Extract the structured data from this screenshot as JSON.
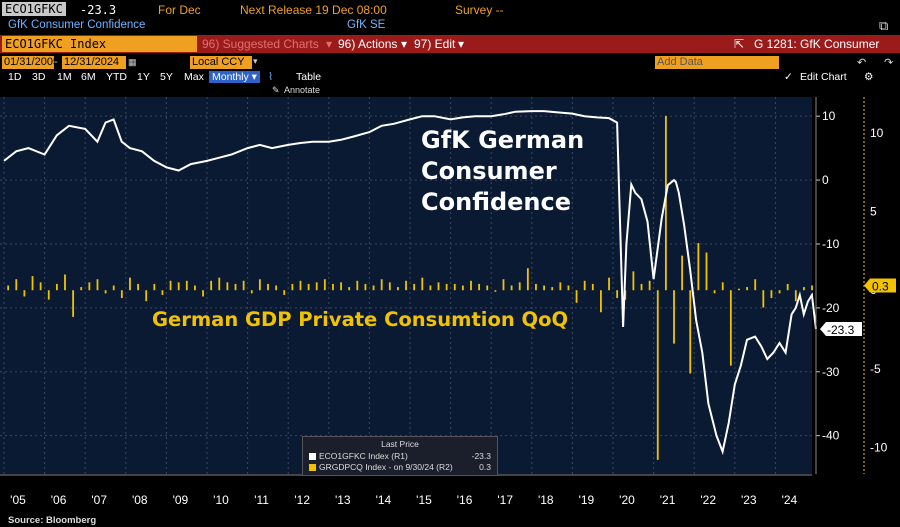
{
  "header": {
    "ticker": "ECO1GFKC",
    "last_value": "-23.3",
    "period": "For Dec",
    "next_release": "Next Release 19 Dec 08:00",
    "survey": "Survey --",
    "series_name": "GfK Consumer Confidence",
    "source_name": "GfK SE"
  },
  "toolbar": {
    "security": "ECO1GFKC Index",
    "suggested": "96) Suggested Charts",
    "actions": "96) Actions",
    "edit": "97) Edit",
    "chart_id": "G 1281: GfK Consumer"
  },
  "dates": {
    "start": "01/31/2005",
    "end": "12/31/2024",
    "currency": "Local CCY",
    "add_data": "Add Data",
    "edit_chart": "Edit Chart"
  },
  "tabs": [
    "1D",
    "3D",
    "1M",
    "6M",
    "YTD",
    "1Y",
    "5Y",
    "Max"
  ],
  "frequency": "Monthly",
  "table_label": "Table",
  "annotate_label": "Annotate",
  "source": "Source: Bloomberg",
  "colors": {
    "line": "#ffffff",
    "bars": "#f2c200",
    "plot_bg": "#0b1a33",
    "accent": "#f0a020"
  },
  "chart_data": {
    "type": "line+bar",
    "title_line": "GfK German Consumer Confidence",
    "title_bar": "German GDP Private Consumtion QoQ",
    "x_labels": [
      "'05",
      "'06",
      "'07",
      "'08",
      "'09",
      "'10",
      "'11",
      "'12",
      "'13",
      "'14",
      "'15",
      "'16",
      "'17",
      "'18",
      "'19",
      "'20",
      "'21",
      "'22",
      "'23",
      "'24"
    ],
    "right_axis_r1": {
      "ticks": [
        10,
        0,
        -10,
        -20,
        -30,
        -40
      ],
      "range": [
        -46,
        13
      ]
    },
    "right_axis_r2": {
      "ticks": [
        10,
        5,
        0,
        -5,
        -10
      ],
      "range": [
        -11.7,
        12.3
      ]
    },
    "series": [
      {
        "name": "ECO1GFKC Index (R1)",
        "axis": "R1",
        "last": "-23.3",
        "points": [
          [
            2005.0,
            3
          ],
          [
            2005.3,
            4.5
          ],
          [
            2005.6,
            5
          ],
          [
            2006.0,
            4
          ],
          [
            2006.3,
            7
          ],
          [
            2006.6,
            8.5
          ],
          [
            2007.0,
            8
          ],
          [
            2007.3,
            6
          ],
          [
            2007.5,
            9
          ],
          [
            2007.7,
            9.5
          ],
          [
            2007.9,
            6
          ],
          [
            2008.1,
            5
          ],
          [
            2008.4,
            4.5
          ],
          [
            2008.7,
            3
          ],
          [
            2009.0,
            2
          ],
          [
            2009.3,
            1.5
          ],
          [
            2009.6,
            2.5
          ],
          [
            2010.0,
            3
          ],
          [
            2010.3,
            3.5
          ],
          [
            2010.6,
            4
          ],
          [
            2011.0,
            5
          ],
          [
            2011.3,
            5.5
          ],
          [
            2011.6,
            5
          ],
          [
            2012.0,
            5.5
          ],
          [
            2012.3,
            5.8
          ],
          [
            2012.6,
            6
          ],
          [
            2013.0,
            6
          ],
          [
            2013.3,
            6.3
          ],
          [
            2013.6,
            6.8
          ],
          [
            2014.0,
            7.5
          ],
          [
            2014.3,
            8.5
          ],
          [
            2014.6,
            8.8
          ],
          [
            2015.0,
            9.5
          ],
          [
            2015.3,
            10
          ],
          [
            2015.6,
            10
          ],
          [
            2016.0,
            9.5
          ],
          [
            2016.3,
            9.8
          ],
          [
            2016.6,
            10
          ],
          [
            2017.0,
            10
          ],
          [
            2017.3,
            10.3
          ],
          [
            2017.6,
            10.7
          ],
          [
            2018.0,
            10.8
          ],
          [
            2018.3,
            10.8
          ],
          [
            2018.6,
            10.6
          ],
          [
            2019.0,
            10.4
          ],
          [
            2019.3,
            10
          ],
          [
            2019.6,
            9.8
          ],
          [
            2019.9,
            9.7
          ],
          [
            2020.1,
            9
          ],
          [
            2020.25,
            -23
          ],
          [
            2020.33,
            -10
          ],
          [
            2020.45,
            -0.7
          ],
          [
            2020.55,
            -2
          ],
          [
            2020.7,
            -3
          ],
          [
            2020.85,
            -6.5
          ],
          [
            2021.0,
            -15.5
          ],
          [
            2021.2,
            -6
          ],
          [
            2021.35,
            -0.8
          ],
          [
            2021.5,
            0
          ],
          [
            2021.55,
            -0.3
          ],
          [
            2021.62,
            -2
          ],
          [
            2021.75,
            -7
          ],
          [
            2021.9,
            -14
          ],
          [
            2022.05,
            -22
          ],
          [
            2022.2,
            -27
          ],
          [
            2022.35,
            -35
          ],
          [
            2022.55,
            -40
          ],
          [
            2022.7,
            -42.5
          ],
          [
            2022.85,
            -38
          ],
          [
            2023.0,
            -32
          ],
          [
            2023.15,
            -29
          ],
          [
            2023.3,
            -25
          ],
          [
            2023.5,
            -24.5
          ],
          [
            2023.65,
            -26
          ],
          [
            2023.8,
            -28
          ],
          [
            2023.95,
            -27
          ],
          [
            2024.1,
            -25.5
          ],
          [
            2024.25,
            -27
          ],
          [
            2024.4,
            -21
          ],
          [
            2024.5,
            -20
          ],
          [
            2024.6,
            -18
          ],
          [
            2024.7,
            -21
          ],
          [
            2024.8,
            -19
          ],
          [
            2024.9,
            -18
          ],
          [
            2025.0,
            -23.3
          ]
        ]
      },
      {
        "name": "GRGDPCQ Index - on 9/30/24 (R2)",
        "axis": "R2",
        "last": "0.3",
        "values": [
          0.3,
          0.7,
          -0.4,
          0.9,
          0.5,
          -0.6,
          0.4,
          1.0,
          -1.7,
          0.2,
          0.5,
          0.7,
          -0.2,
          0.3,
          -0.5,
          0.8,
          0.4,
          -0.7,
          0.4,
          -0.3,
          0.6,
          0.5,
          0.6,
          0.3,
          -0.4,
          0.6,
          0.8,
          0.5,
          0.4,
          0.6,
          -0.2,
          0.7,
          0.4,
          0.3,
          -0.3,
          0.4,
          0.6,
          0.4,
          0.5,
          0.7,
          0.4,
          0.5,
          0.2,
          0.6,
          0.4,
          0.3,
          0.7,
          0.5,
          0.2,
          0.6,
          0.4,
          0.8,
          0.3,
          0.5,
          0.4,
          0.4,
          0.3,
          0.6,
          0.4,
          0.3,
          -0.1,
          0.7,
          0.3,
          0.5,
          1.4,
          0.4,
          0.3,
          0.2,
          0.5,
          0.3,
          -0.8,
          0.6,
          0.4,
          -1.4,
          0.8,
          -0.5,
          -0.6,
          1.2,
          0.4,
          0.6,
          -10.8,
          11.1,
          -3.4,
          2.2,
          -5.3,
          3.0,
          2.4,
          -0.2,
          0.5,
          -4.8,
          0.1,
          0.2,
          0.7,
          -1.1,
          -0.5,
          -0.2,
          0.4,
          -0.7,
          0.2,
          0.3
        ]
      }
    ],
    "annotations_r2_bars": {
      "start": 2005.1,
      "step": 0.2
    }
  }
}
